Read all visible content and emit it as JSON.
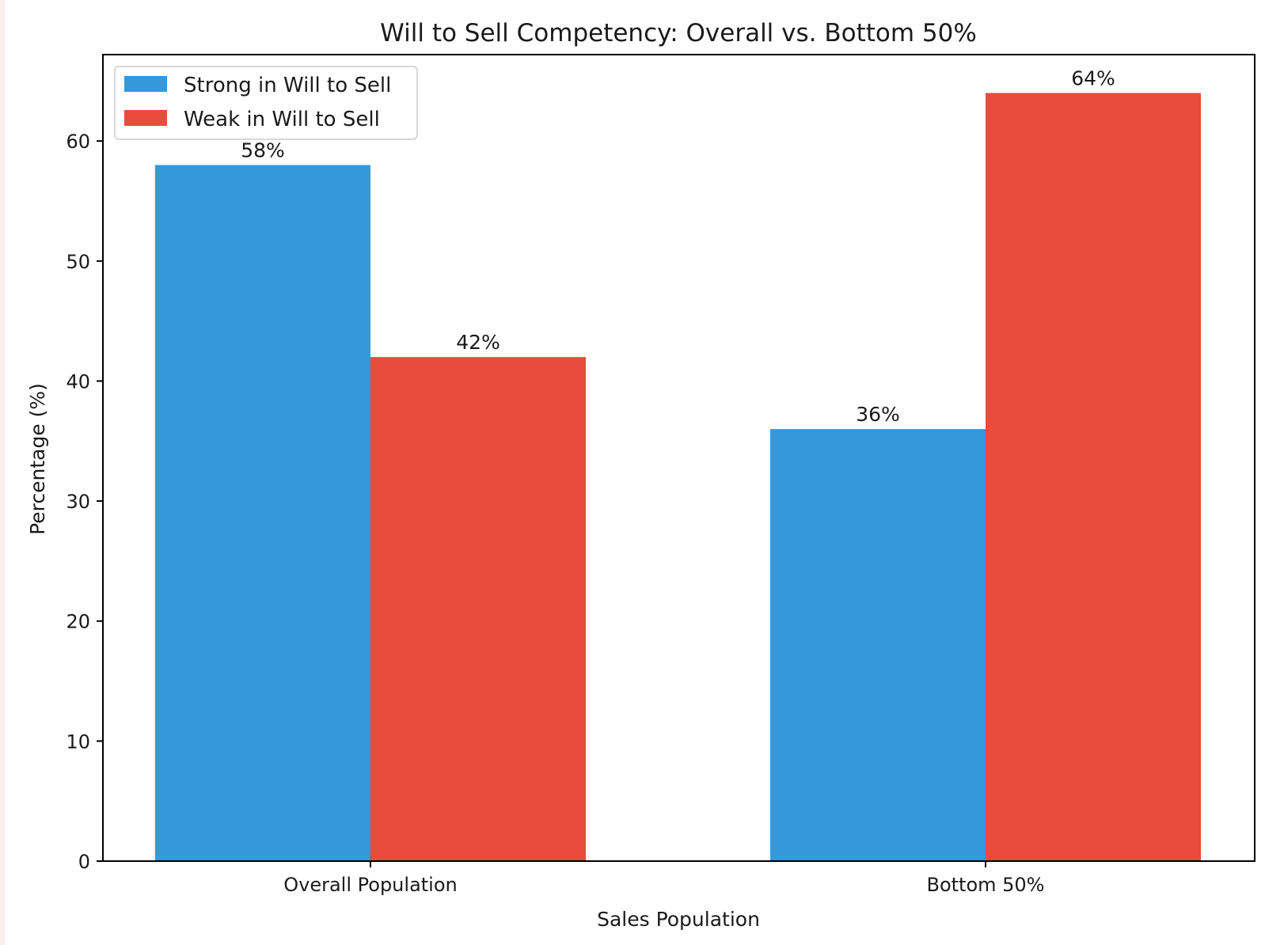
{
  "chart_data": {
    "type": "bar",
    "title": "Will to Sell Competency: Overall vs. Bottom 50%",
    "xlabel": "Sales Population",
    "ylabel": "Percentage (%)",
    "categories": [
      "Overall Population",
      "Bottom 50%"
    ],
    "series": [
      {
        "name": "Strong in Will to Sell",
        "values": [
          58,
          36
        ],
        "color": "#3498db",
        "labels": [
          "58%",
          "36%"
        ]
      },
      {
        "name": "Weak in Will to Sell",
        "values": [
          42,
          64
        ],
        "color": "#e74c3c",
        "labels": [
          "42%",
          "64%"
        ]
      }
    ],
    "ylim": [
      0,
      67.2
    ],
    "yticks": [
      0,
      10,
      20,
      30,
      40,
      50,
      60
    ],
    "legend_position": "top-left",
    "grid": false
  }
}
